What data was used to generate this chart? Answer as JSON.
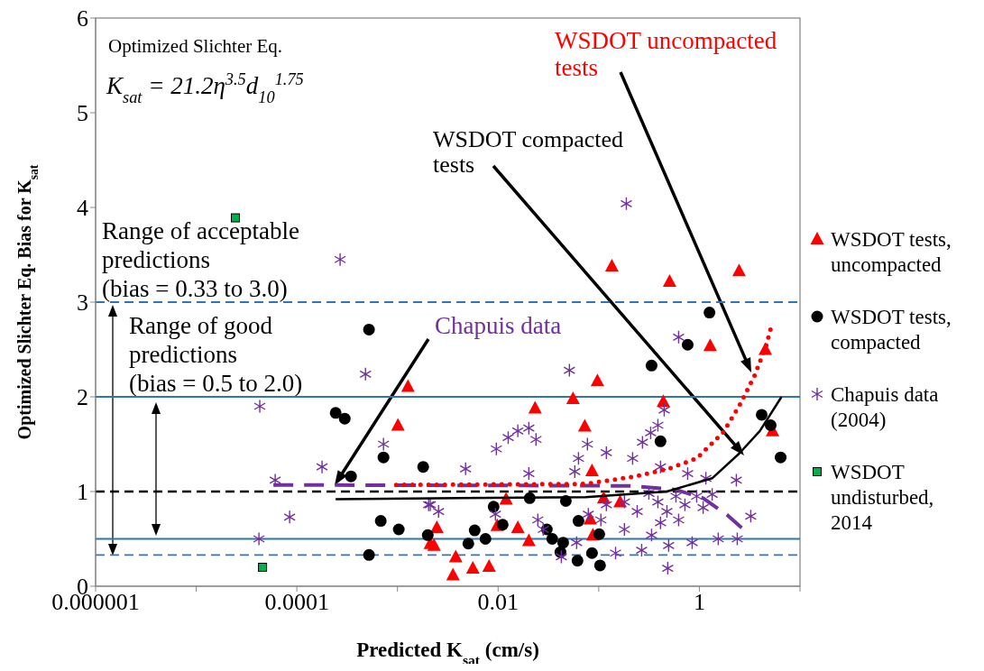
{
  "chart_data": {
    "type": "scatter",
    "xlabel": "Predicted K$_{sat}$ (cm/s)",
    "ylabel": "Optimized Slichter Eq. Bias  for K$_{sat}$",
    "log": "x",
    "xlim": [
      1e-06,
      10
    ],
    "xticks": [
      {
        "value": 1e-06,
        "label": "0.000001"
      },
      {
        "value": 1e-05,
        "label": null
      },
      {
        "value": 0.0001,
        "label": "0.0001"
      },
      {
        "value": 0.001,
        "label": null
      },
      {
        "value": 0.01,
        "label": "0.01"
      },
      {
        "value": 0.1,
        "label": null
      },
      {
        "value": 1,
        "label": "1"
      },
      {
        "value": 10,
        "label": null
      }
    ],
    "ylim": [
      0,
      6
    ],
    "yticks": [
      0,
      1,
      2,
      3,
      4,
      5,
      6
    ],
    "grid": false,
    "legend": "right",
    "series": [
      {
        "name": "WSDOT tests, uncompacted",
        "color": "#ff0000",
        "marker": "triangle",
        "x": [
          0.00127,
          0.00101,
          0.135,
          0.506,
          2.48,
          1.28,
          4.52,
          0.097,
          0.0555,
          0.438,
          0.0233,
          0.0726,
          5.33,
          0.0857,
          0.112,
          0.163,
          0.012,
          0.00246,
          0.00231,
          0.0098,
          0.0157,
          0.0202,
          0.0822,
          0.0875,
          0.00379,
          0.00356,
          0.00561,
          0.00813,
          0.00212
        ],
        "values": [
          2.11,
          1.7,
          3.38,
          3.22,
          3.33,
          2.54,
          2.5,
          2.17,
          1.98,
          1.95,
          1.88,
          1.69,
          1.64,
          1.22,
          0.93,
          0.89,
          0.92,
          0.62,
          0.43,
          0.64,
          0.62,
          0.48,
          0.71,
          0.54,
          0.31,
          0.12,
          0.19,
          0.21,
          0.45
        ]
      },
      {
        "name": "WSDOT tests, compacted",
        "color": "#000000",
        "marker": "circle",
        "x": [
          0.000521,
          0.000243,
          0.000299,
          0.000726,
          0.000345,
          0.0018,
          0.00103,
          0.000682,
          0.000521,
          0.002,
          1.26,
          0.765,
          0.335,
          4.16,
          5.11,
          6.42,
          0.411,
          0.0206,
          0.0471,
          0.00902,
          0.0111,
          0.00585,
          0.00506,
          0.00749,
          0.0305,
          0.0345,
          0.0443,
          0.0416,
          0.0629,
          0.101,
          0.0857,
          0.0615,
          0.103
        ],
        "values": [
          2.71,
          1.83,
          1.77,
          1.36,
          1.16,
          1.26,
          0.6,
          0.69,
          0.33,
          0.54,
          2.89,
          2.55,
          2.33,
          1.81,
          1.7,
          1.36,
          1.53,
          0.93,
          0.9,
          0.84,
          0.65,
          0.59,
          0.45,
          0.5,
          0.6,
          0.5,
          0.46,
          0.36,
          0.69,
          0.55,
          0.35,
          0.27,
          0.22
        ]
      },
      {
        "name": "Chapuis data (2004)",
        "color": "#7030a0",
        "marker": "cross",
        "x": [
          0.000269,
          0.000481,
          4.28e-05,
          0.000726,
          0.000178,
          6.09e-05,
          8.48e-05,
          4.2e-05,
          0.00204,
          0.188,
          0.0511,
          0.622,
          0.00475,
          0.0096,
          0.0126,
          0.0157,
          0.0202,
          0.0238,
          0.00212,
          0.00256,
          0.447,
          0.387,
          0.328,
          0.272,
          0.217,
          0.119,
          0.0772,
          0.0629,
          0.0578,
          0.0202,
          0.0248,
          0.0281,
          0.0425,
          0.0603,
          0.147,
          0.267,
          0.335,
          0.495,
          0.848,
          1.54,
          2.38,
          3.24,
          2.33,
          1.16,
          0.765,
          0.411,
          0.485,
          0.119,
          0.18,
          0.241,
          0.315,
          0.387,
          0.476,
          0.411,
          0.585,
          0.719,
          0.622,
          0.94,
          1.09,
          1.34,
          0.18,
          0.105,
          0.0094,
          0.0788
        ],
        "values": [
          3.45,
          2.24,
          1.9,
          1.5,
          1.26,
          1.12,
          0.73,
          0.5,
          0.86,
          4.04,
          2.28,
          2.63,
          1.24,
          1.45,
          1.57,
          1.64,
          1.67,
          1.55,
          0.86,
          0.79,
          1.86,
          1.7,
          1.62,
          1.52,
          1.35,
          1.41,
          1.5,
          1.35,
          1.21,
          1.19,
          0.7,
          0.6,
          0.31,
          0.46,
          0.35,
          0.38,
          0.54,
          0.43,
          0.46,
          0.5,
          0.5,
          0.74,
          1.12,
          1.14,
          1.19,
          1.26,
          0.19,
          0.86,
          0.89,
          0.79,
          0.98,
          0.89,
          0.79,
          0.67,
          0.95,
          0.86,
          0.7,
          0.95,
          0.83,
          0.97,
          0.6,
          0.7,
          0.76,
          0.76
        ]
      },
      {
        "name": "WSDOT undisturbed, 2014",
        "color": "#00b050",
        "marker": "square",
        "x": [
          2.45e-05,
          4.56e-05
        ],
        "values": [
          3.89,
          0.2
        ]
      },
      {
        "type": "line",
        "color": "#7030a0",
        "marker": "none",
        "line_style": "dashed",
        "x": [
          5.85e-05,
          0.208,
          0.58,
          1.09,
          1.9,
          2.75
        ],
        "values": [
          1.07,
          1.06,
          1.02,
          0.93,
          0.75,
          0.6
        ]
      },
      {
        "type": "line",
        "color": "#ff0000",
        "marker": "none",
        "line_style": "dotted",
        "x": [
          0.00097,
          0.0741,
          0.231,
          0.495,
          0.94,
          1.71,
          2.48,
          3.52,
          4.61,
          5.33
        ],
        "values": [
          1.07,
          1.08,
          1.16,
          1.24,
          1.35,
          1.62,
          1.9,
          2.22,
          2.54,
          2.79
        ]
      },
      {
        "type": "line",
        "color": "#000000",
        "marker": "none",
        "line_style": "solid",
        "x": [
          0.000243,
          0.0741,
          0.476,
          1.34,
          2.48,
          3.99,
          6.55
        ],
        "values": [
          0.92,
          0.94,
          1.0,
          1.14,
          1.4,
          1.64,
          2.0
        ]
      }
    ],
    "ref_lines": [
      {
        "axis": "y",
        "value": 3,
        "color": "#2e75b6",
        "line_style": "dashed"
      },
      {
        "axis": "y",
        "value": 2,
        "color": "#2e75b6",
        "line_style": "solid"
      },
      {
        "axis": "y",
        "value": 1,
        "color": "#000000",
        "line_style": "dashed"
      },
      {
        "axis": "y",
        "value": 0.5,
        "color": "#2e75b6",
        "line_style": "solid"
      },
      {
        "axis": "y",
        "value": 0.33,
        "color": "#2e75b6",
        "line_style": "dashed"
      }
    ],
    "annotations": [
      "Optimized Slichter Eq.",
      "K$_{sat}$ = 21.2η$^{3.5}$d$_{10}$$^{1.75}$",
      "WSDOT uncompacted\ntests",
      "WSDOT compacted\ntests",
      "Chapuis data",
      "Range of acceptable\npredictions\n(bias = 0.33 to 3.0)",
      "Range of good\npredictions\n(bias = 0.5 to 2.0)"
    ]
  }
}
